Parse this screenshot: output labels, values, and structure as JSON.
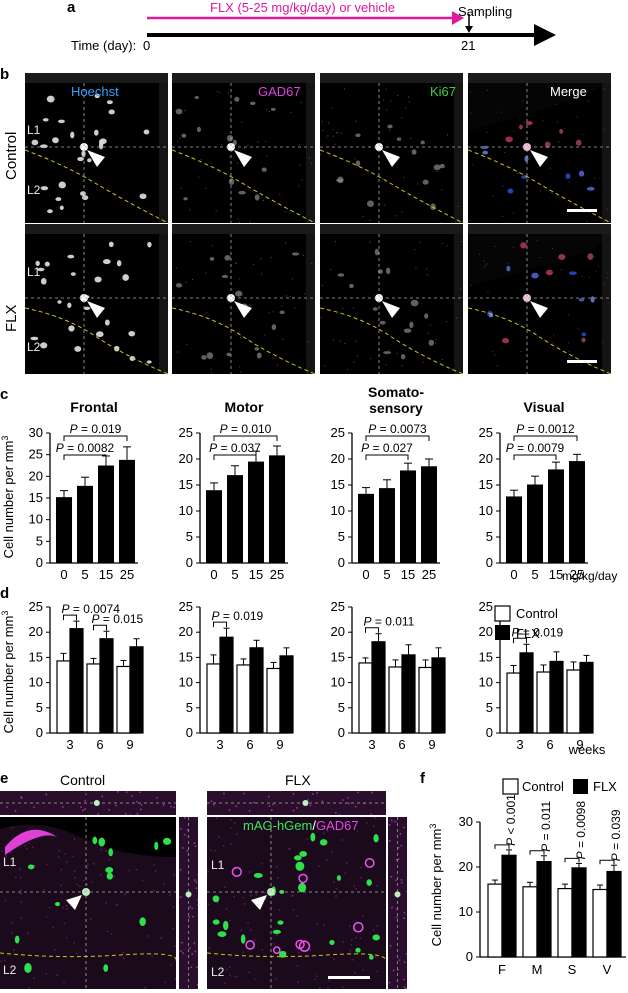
{
  "panel_a": {
    "label": "a",
    "treatment": "FLX (5-25 mg/kg/day) or vehicle",
    "sampling": "Sampling",
    "time_label": "Time (day):",
    "day_start": "0",
    "day_end": "21",
    "treatment_color": "#e0189e"
  },
  "panel_b": {
    "label": "b",
    "channels": [
      "Hoechst",
      "GAD67",
      "Ki67",
      "Merge"
    ],
    "channel_colors": [
      "#3aa0ff",
      "#e040e0",
      "#40d040",
      "#ffffff"
    ],
    "rows": [
      "Control",
      "FLX"
    ],
    "layers": [
      "L1",
      "L2"
    ]
  },
  "panel_c": {
    "label": "c",
    "ylabel": "Cell number per mm",
    "ylabel_sup": "3",
    "unit": "mg/kg/day"
  },
  "panel_d": {
    "label": "d",
    "ylabel": "Cell number per mm",
    "ylabel_sup": "3",
    "unit": "weeks",
    "legend": [
      "Control",
      "FLX"
    ]
  },
  "panel_e": {
    "label": "e",
    "titles": [
      "Control",
      "FLX"
    ],
    "stain_green": "mAG-hGem",
    "stain_sep": "/",
    "stain_magenta": "GAD67",
    "layers": [
      "L1",
      "L2"
    ]
  },
  "panel_f": {
    "label": "f",
    "legend": [
      "Control",
      "FLX"
    ]
  },
  "chart_data": [
    {
      "type": "bar",
      "panel": "c",
      "title": "Frontal",
      "categories": [
        "0",
        "5",
        "15",
        "25"
      ],
      "values": [
        15.2,
        17.8,
        22.5,
        23.8
      ],
      "errors": [
        1.5,
        2.0,
        2.2,
        3.0
      ],
      "ylim": [
        0,
        30
      ],
      "yticks": [
        0,
        5,
        10,
        15,
        20,
        25,
        30
      ],
      "comparisons": [
        {
          "from": 0,
          "to": 2,
          "label": "P = 0.0082"
        },
        {
          "from": 0,
          "to": 3,
          "label": "P = 0.019"
        }
      ]
    },
    {
      "type": "bar",
      "panel": "c",
      "title": "Motor",
      "categories": [
        "0",
        "5",
        "15",
        "25"
      ],
      "values": [
        14.0,
        16.9,
        19.5,
        20.7
      ],
      "errors": [
        1.4,
        1.8,
        2.0,
        1.8
      ],
      "ylim": [
        0,
        25
      ],
      "yticks": [
        0,
        5,
        10,
        15,
        20,
        25
      ],
      "comparisons": [
        {
          "from": 0,
          "to": 2,
          "label": "P = 0.037"
        },
        {
          "from": 0,
          "to": 3,
          "label": "P = 0.010"
        }
      ]
    },
    {
      "type": "bar",
      "panel": "c",
      "title": "Somato-\nsensory",
      "categories": [
        "0",
        "5",
        "15",
        "25"
      ],
      "values": [
        13.3,
        14.4,
        17.8,
        18.6
      ],
      "errors": [
        1.2,
        1.6,
        1.4,
        1.4
      ],
      "ylim": [
        0,
        25
      ],
      "yticks": [
        0,
        5,
        10,
        15,
        20,
        25
      ],
      "comparisons": [
        {
          "from": 0,
          "to": 2,
          "label": "P = 0.027"
        },
        {
          "from": 0,
          "to": 3,
          "label": "P = 0.0073"
        }
      ]
    },
    {
      "type": "bar",
      "panel": "c",
      "title": "Visual",
      "categories": [
        "0",
        "5",
        "15",
        "25"
      ],
      "values": [
        12.8,
        15.1,
        18.0,
        19.6
      ],
      "errors": [
        1.2,
        1.6,
        1.4,
        1.3
      ],
      "ylim": [
        0,
        25
      ],
      "yticks": [
        0,
        5,
        10,
        15,
        20,
        25
      ],
      "comparisons": [
        {
          "from": 0,
          "to": 2,
          "label": "P = 0.0079"
        },
        {
          "from": 0,
          "to": 3,
          "label": "P = 0.0012"
        }
      ]
    },
    {
      "type": "bar",
      "panel": "d",
      "region": "Frontal",
      "categories": [
        "3",
        "6",
        "9"
      ],
      "series": [
        {
          "name": "Control",
          "values": [
            14.3,
            13.7,
            13.2
          ],
          "errors": [
            1.5,
            1.1,
            1.2
          ]
        },
        {
          "name": "FLX",
          "values": [
            20.7,
            18.7,
            17.1
          ],
          "errors": [
            1.5,
            1.5,
            1.6
          ]
        }
      ],
      "ylim": [
        0,
        25
      ],
      "yticks": [
        0,
        5,
        10,
        15,
        20,
        25
      ],
      "comparisons": [
        {
          "group": 0,
          "label": "P = 0.0074"
        },
        {
          "group": 1,
          "label": "P = 0.015"
        }
      ]
    },
    {
      "type": "bar",
      "panel": "d",
      "region": "Motor",
      "categories": [
        "3",
        "6",
        "9"
      ],
      "series": [
        {
          "name": "Control",
          "values": [
            13.7,
            13.5,
            12.8
          ],
          "errors": [
            1.8,
            1.2,
            1.2
          ]
        },
        {
          "name": "FLX",
          "values": [
            19.0,
            16.9,
            15.3
          ],
          "errors": [
            1.8,
            1.5,
            1.6
          ]
        }
      ],
      "ylim": [
        0,
        25
      ],
      "yticks": [
        0,
        5,
        10,
        15,
        20,
        25
      ],
      "comparisons": [
        {
          "group": 0,
          "label": "P = 0.019"
        }
      ]
    },
    {
      "type": "bar",
      "panel": "d",
      "region": "Somatosensory",
      "categories": [
        "3",
        "6",
        "9"
      ],
      "series": [
        {
          "name": "Control",
          "values": [
            13.9,
            13.1,
            13.0
          ],
          "errors": [
            1.0,
            1.4,
            1.5
          ]
        },
        {
          "name": "FLX",
          "values": [
            18.1,
            15.5,
            14.9
          ],
          "errors": [
            1.6,
            2.0,
            2.0
          ]
        }
      ],
      "ylim": [
        0,
        25
      ],
      "yticks": [
        0,
        5,
        10,
        15,
        20,
        25
      ],
      "comparisons": [
        {
          "group": 0,
          "label": "P = 0.011"
        }
      ]
    },
    {
      "type": "bar",
      "panel": "d",
      "region": "Visual",
      "categories": [
        "3",
        "6",
        "9"
      ],
      "series": [
        {
          "name": "Control",
          "values": [
            11.9,
            12.1,
            12.5
          ],
          "errors": [
            1.5,
            1.4,
            1.6
          ]
        },
        {
          "name": "FLX",
          "values": [
            15.9,
            14.2,
            14.0
          ],
          "errors": [
            1.7,
            1.9,
            1.4
          ]
        }
      ],
      "ylim": [
        0,
        25
      ],
      "yticks": [
        0,
        5,
        10,
        15,
        20,
        25
      ],
      "comparisons": [
        {
          "group": 0,
          "label": "P = 0.019"
        }
      ]
    },
    {
      "type": "bar",
      "panel": "f",
      "categories": [
        "F",
        "M",
        "S",
        "V"
      ],
      "series": [
        {
          "name": "Control",
          "values": [
            16.2,
            15.6,
            15.2,
            15.0
          ],
          "errors": [
            0.9,
            1.0,
            1.0,
            1.0
          ]
        },
        {
          "name": "FLX",
          "values": [
            22.6,
            21.2,
            19.8,
            19.0
          ],
          "errors": [
            1.2,
            1.3,
            1.0,
            1.4
          ]
        }
      ],
      "ylim": [
        0,
        30
      ],
      "yticks": [
        0,
        10,
        20,
        30
      ],
      "ylabel": "Cell number per mm",
      "ylabel_sup": "3",
      "comparisons": [
        {
          "group": 0,
          "label": "P < 0.001"
        },
        {
          "group": 1,
          "label": "P = 0.011"
        },
        {
          "group": 2,
          "label": "P = 0.0098"
        },
        {
          "group": 3,
          "label": "P = 0.039"
        }
      ]
    }
  ]
}
